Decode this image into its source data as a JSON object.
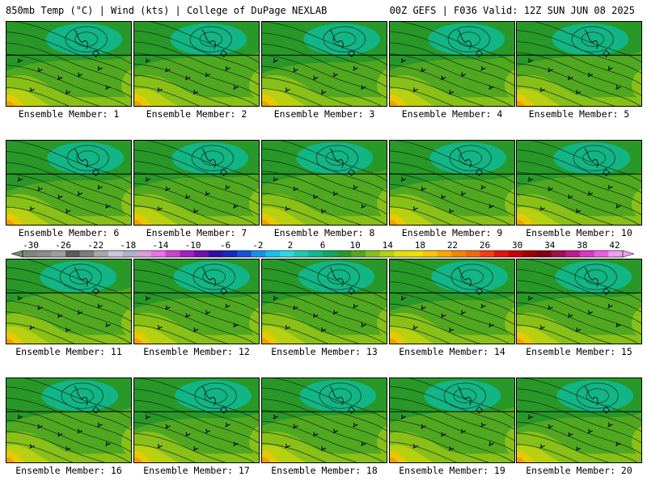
{
  "header": {
    "left": "850mb Temp (°C) | Wind (kts) | College of DuPage NEXLAB",
    "right": "00Z GEFS | F036 Valid: 12Z SUN JUN 08 2025"
  },
  "panel_label_prefix": "Ensemble Member: ",
  "members": [
    1,
    2,
    3,
    4,
    5,
    6,
    7,
    8,
    9,
    10,
    11,
    12,
    13,
    14,
    15,
    16,
    17,
    18,
    19,
    20
  ],
  "member_labels": [
    "Ensemble Member: 1",
    "Ensemble Member: 2",
    "Ensemble Member: 3",
    "Ensemble Member: 4",
    "Ensemble Member: 5",
    "Ensemble Member: 6",
    "Ensemble Member: 7",
    "Ensemble Member: 8",
    "Ensemble Member: 9",
    "Ensemble Member: 10",
    "Ensemble Member: 11",
    "Ensemble Member: 12",
    "Ensemble Member: 13",
    "Ensemble Member: 14",
    "Ensemble Member: 15",
    "Ensemble Member: 16",
    "Ensemble Member: 17",
    "Ensemble Member: 18",
    "Ensemble Member: 19",
    "Ensemble Member: 20"
  ],
  "colorbar": {
    "tick_labels": [
      "-30",
      "-26",
      "-22",
      "-18",
      "-14",
      "-10",
      "-6",
      "-2",
      "2",
      "6",
      "10",
      "14",
      "18",
      "22",
      "26",
      "30",
      "34",
      "38",
      "42"
    ],
    "colors": [
      "#7a8a7a",
      "#8c8c8c",
      "#9e9e9e",
      "#5a5a5a",
      "#7c7c7c",
      "#a8a8a8",
      "#c8c8d8",
      "#a8b4c8",
      "#dc9cdc",
      "#e870e8",
      "#d040d0",
      "#a020c0",
      "#7010b0",
      "#3010a0",
      "#1828b8",
      "#1850d8",
      "#1890e8",
      "#18c0f0",
      "#30d8e0",
      "#20c8b0",
      "#10b890",
      "#10a860",
      "#289828",
      "#50a820",
      "#88c018",
      "#b8d010",
      "#e0e010",
      "#f0e000",
      "#f8c800",
      "#f8a800",
      "#f08800",
      "#f06810",
      "#f04010",
      "#e81010",
      "#c80000",
      "#a00000",
      "#800010",
      "#a01050",
      "#c01890",
      "#d838c0",
      "#e860e0",
      "#f0a0f0"
    ]
  },
  "map_colors": {
    "cold": "#10b890",
    "cool": "#289828",
    "mid": "#50a820",
    "warm": "#88c018",
    "warmer": "#b8d010",
    "hot": "#e8c800",
    "hottest": "#f0a000"
  }
}
